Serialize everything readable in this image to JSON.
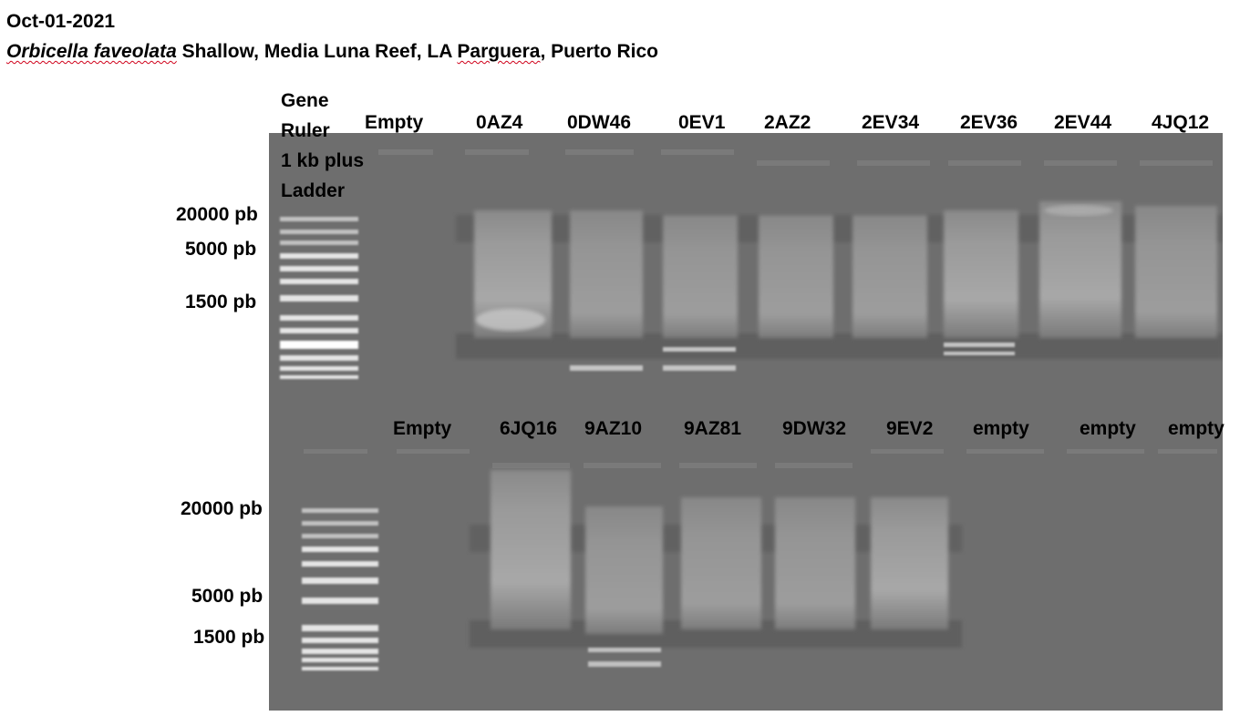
{
  "header": {
    "date": "Oct-01-2021",
    "species": "Orbicella faveolata",
    "description_mid": " Shallow, Media Luna Reef, LA ",
    "place_underlined": "Parguera",
    "description_end": ", Puerto Rico"
  },
  "ladder": {
    "name_lines": [
      "Gene",
      "Ruler",
      "1 kb plus",
      "Ladder"
    ]
  },
  "top_row": {
    "lanes": [
      "Empty",
      "0AZ4",
      "0DW46",
      "0EV1",
      "2AZ2",
      "2EV34",
      "2EV36",
      "2EV44",
      "4JQ12"
    ],
    "size_markers": [
      "20000 pb",
      "5000 pb",
      "1500 pb"
    ]
  },
  "bottom_row": {
    "lanes": [
      "Empty",
      "6JQ16",
      "9AZ10",
      "9AZ81",
      "9DW32",
      "9EV2",
      "empty",
      "empty",
      "empty"
    ],
    "size_markers": [
      "20000 pb",
      "5000 pb",
      "1500 pb"
    ]
  },
  "colors": {
    "gel_background": "#6e6e6e",
    "band": "#ffffff",
    "spellcheck_underline": "#d0021b"
  }
}
